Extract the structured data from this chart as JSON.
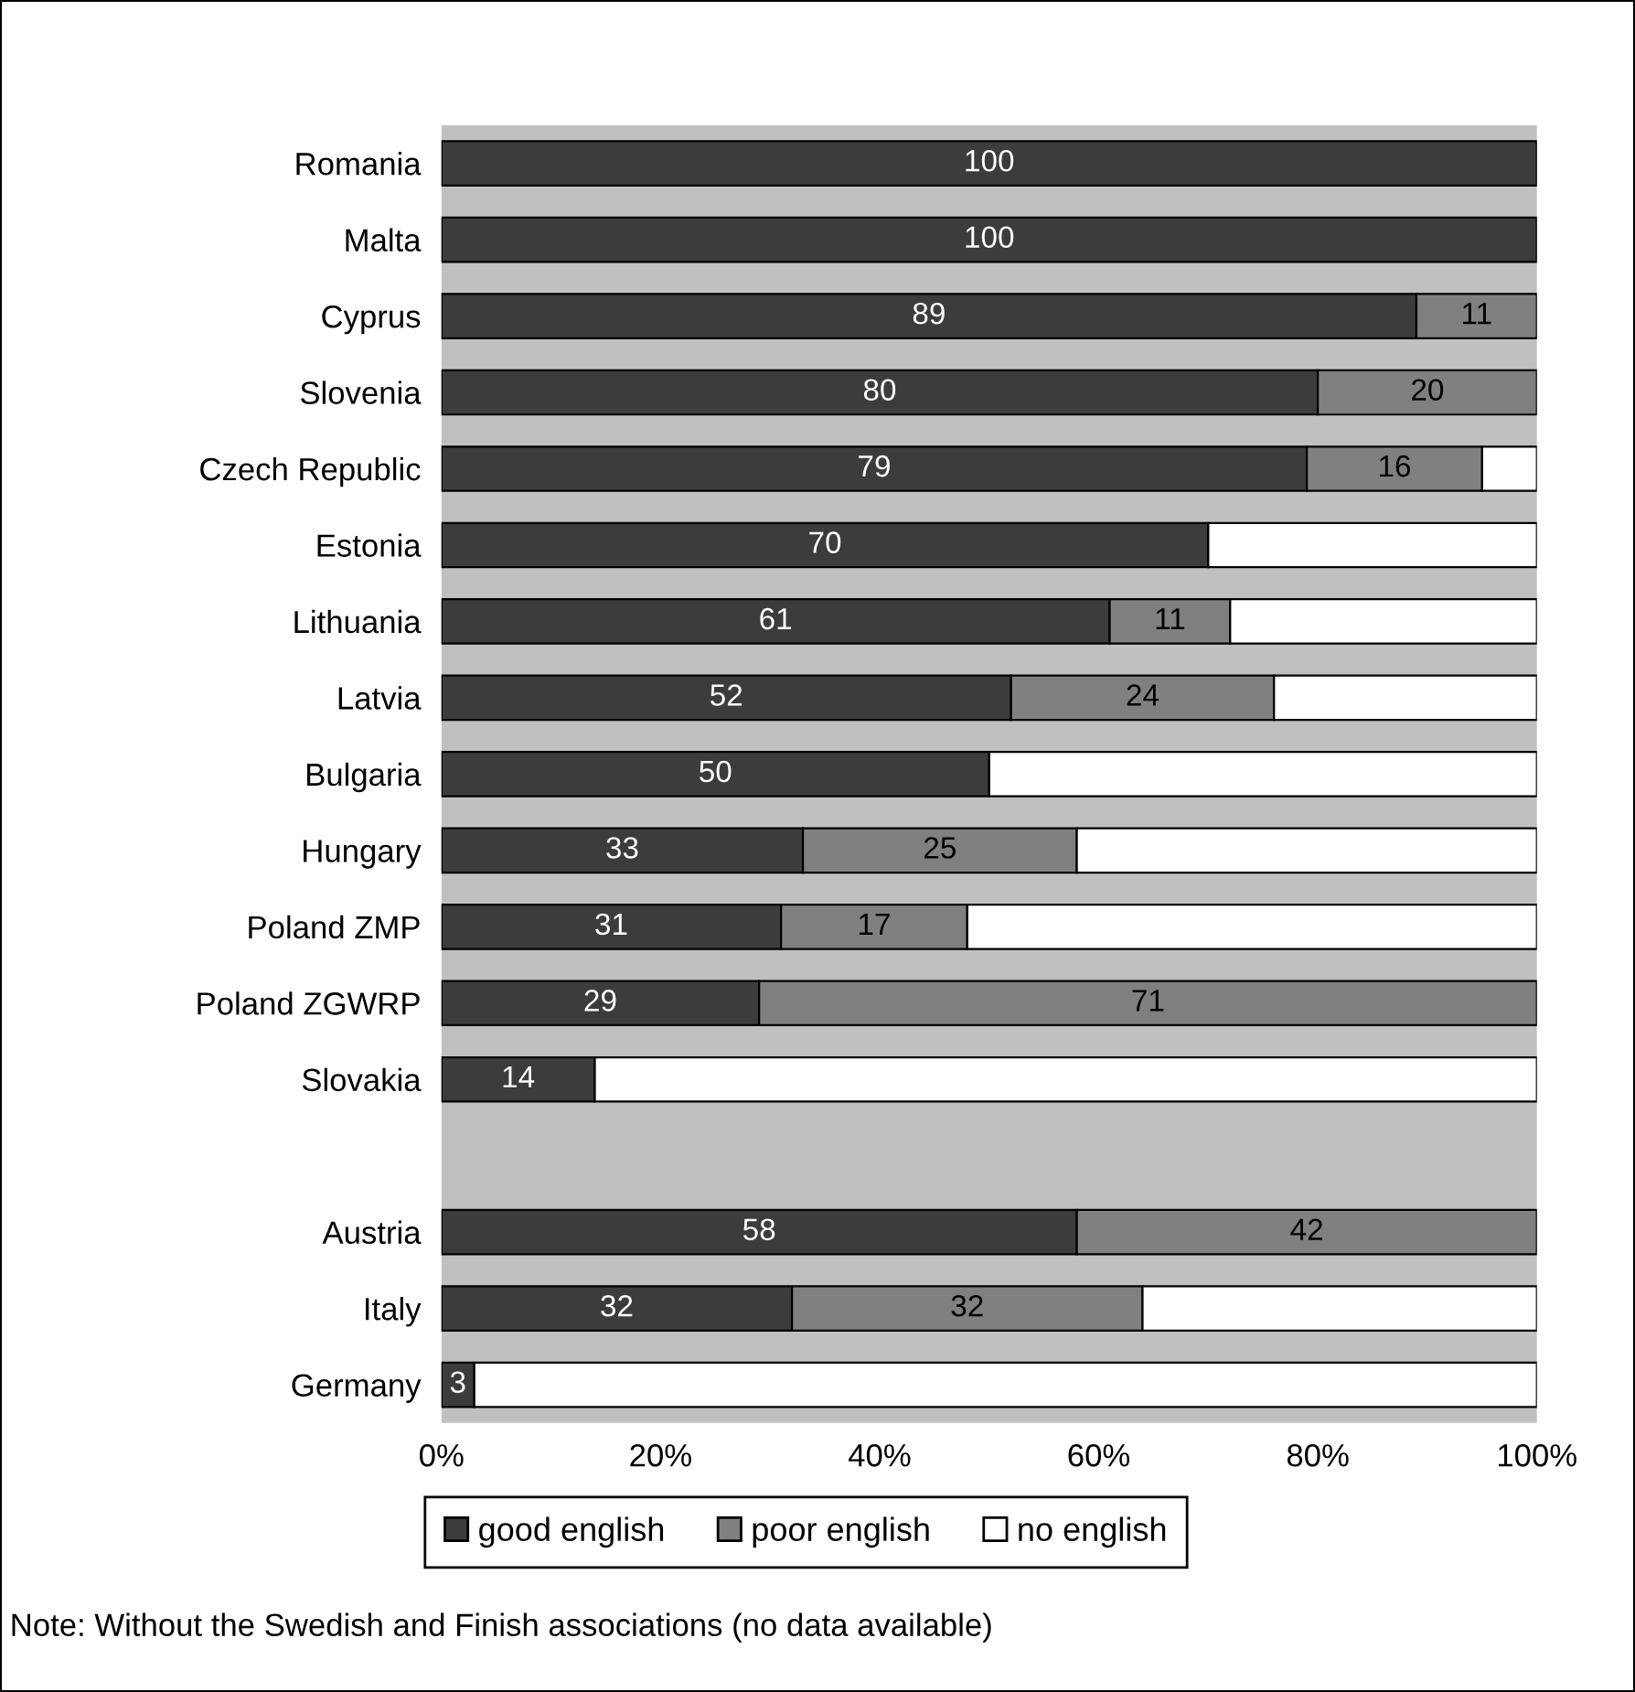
{
  "chart_data": {
    "type": "bar",
    "orientation": "horizontal",
    "stacked": true,
    "categories": [
      "Romania",
      "Malta",
      "Cyprus",
      "Slovenia",
      "Czech Republic",
      "Estonia",
      "Lithuania",
      "Latvia",
      "Bulgaria",
      "Hungary",
      "Poland ZMP",
      "Poland ZGWRP",
      "Slovakia",
      null,
      "Austria",
      "Italy",
      "Germany"
    ],
    "series": [
      {
        "name": "good english",
        "color": "#3c3c3c",
        "values": [
          100,
          100,
          89,
          80,
          79,
          70,
          61,
          52,
          50,
          33,
          31,
          29,
          14,
          null,
          58,
          32,
          3
        ],
        "value_labels": [
          "100",
          "100",
          "89",
          "80",
          "79",
          "70",
          "61",
          "52",
          "50",
          "33",
          "31",
          "29",
          "14",
          null,
          "58",
          "32",
          "3"
        ]
      },
      {
        "name": "poor english",
        "color": "#808080",
        "values": [
          null,
          null,
          11,
          20,
          16,
          null,
          11,
          24,
          null,
          25,
          17,
          71,
          null,
          null,
          42,
          32,
          null
        ],
        "value_labels": [
          null,
          null,
          "11",
          "20",
          "16",
          null,
          "11",
          "24",
          null,
          "25",
          "17",
          "71",
          null,
          null,
          "42",
          "32",
          null
        ]
      },
      {
        "name": "no english",
        "color": "#ffffff",
        "values": [
          null,
          null,
          null,
          null,
          5,
          30,
          28,
          24,
          50,
          42,
          52,
          null,
          86,
          null,
          null,
          36,
          97
        ],
        "value_labels": [
          null,
          null,
          null,
          null,
          null,
          null,
          null,
          null,
          null,
          null,
          null,
          null,
          null,
          null,
          null,
          null,
          null
        ]
      }
    ],
    "xlim": [
      0,
      100
    ],
    "xticks": [
      {
        "value": 0,
        "label": "0%"
      },
      {
        "value": 20,
        "label": "20%"
      },
      {
        "value": 40,
        "label": "40%"
      },
      {
        "value": 60,
        "label": "60%"
      },
      {
        "value": 80,
        "label": "80%"
      },
      {
        "value": 100,
        "label": "100%"
      }
    ],
    "legend": "bottom",
    "grid": false,
    "annotations": [
      "Note: Without the Swedish and Finish associations (no data available)"
    ]
  }
}
